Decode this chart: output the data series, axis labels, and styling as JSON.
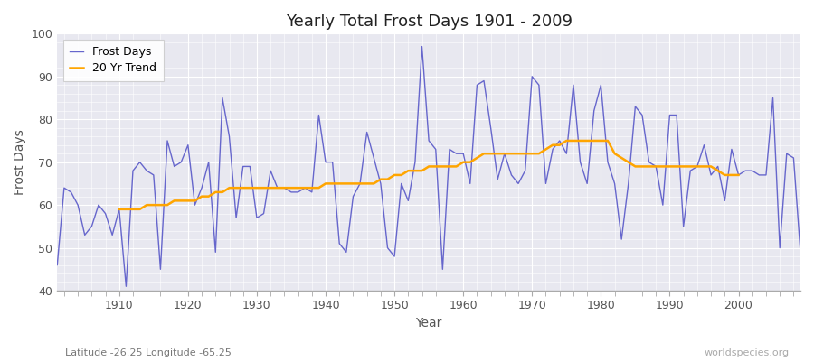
{
  "title": "Yearly Total Frost Days 1901 - 2009",
  "xlabel": "Year",
  "ylabel": "Frost Days",
  "footnote_left": "Latitude -26.25 Longitude -65.25",
  "footnote_right": "worldspecies.org",
  "legend_entries": [
    "Frost Days",
    "20 Yr Trend"
  ],
  "line_color": "#6666cc",
  "trend_color": "#FFA500",
  "fig_bg_color": "#ffffff",
  "plot_bg_color": "#e8e8f0",
  "ylim": [
    40,
    100
  ],
  "xlim": [
    1901,
    2009
  ],
  "years": [
    1901,
    1902,
    1903,
    1904,
    1905,
    1906,
    1907,
    1908,
    1909,
    1910,
    1911,
    1912,
    1913,
    1914,
    1915,
    1916,
    1917,
    1918,
    1919,
    1920,
    1921,
    1922,
    1923,
    1924,
    1925,
    1926,
    1927,
    1928,
    1929,
    1930,
    1931,
    1932,
    1933,
    1934,
    1935,
    1936,
    1937,
    1938,
    1939,
    1940,
    1941,
    1942,
    1943,
    1944,
    1945,
    1946,
    1947,
    1948,
    1949,
    1950,
    1951,
    1952,
    1953,
    1954,
    1955,
    1956,
    1957,
    1958,
    1959,
    1960,
    1961,
    1962,
    1963,
    1964,
    1965,
    1966,
    1967,
    1968,
    1969,
    1970,
    1971,
    1972,
    1973,
    1974,
    1975,
    1976,
    1977,
    1978,
    1979,
    1980,
    1981,
    1982,
    1983,
    1984,
    1985,
    1986,
    1987,
    1988,
    1989,
    1990,
    1991,
    1992,
    1993,
    1994,
    1995,
    1996,
    1997,
    1998,
    1999,
    2000,
    2001,
    2002,
    2003,
    2004,
    2005,
    2006,
    2007,
    2008,
    2009
  ],
  "frost_days": [
    46,
    64,
    63,
    60,
    53,
    55,
    60,
    58,
    53,
    59,
    41,
    68,
    70,
    68,
    67,
    45,
    75,
    69,
    70,
    74,
    60,
    64,
    70,
    49,
    85,
    76,
    57,
    69,
    69,
    57,
    58,
    68,
    64,
    64,
    63,
    63,
    64,
    63,
    81,
    70,
    70,
    51,
    49,
    62,
    65,
    77,
    71,
    65,
    50,
    48,
    65,
    61,
    70,
    97,
    75,
    73,
    45,
    73,
    72,
    72,
    65,
    88,
    89,
    78,
    66,
    72,
    67,
    65,
    68,
    90,
    88,
    65,
    73,
    75,
    72,
    88,
    70,
    65,
    82,
    88,
    70,
    65,
    52,
    65,
    83,
    81,
    70,
    69,
    60,
    81,
    81,
    55,
    68,
    69,
    74,
    67,
    69,
    61,
    73,
    67,
    68,
    68,
    67,
    67,
    85,
    50,
    72,
    71,
    49
  ],
  "trend_years": [
    1910,
    1911,
    1912,
    1913,
    1914,
    1915,
    1916,
    1917,
    1918,
    1919,
    1920,
    1921,
    1922,
    1923,
    1924,
    1925,
    1926,
    1927,
    1928,
    1929,
    1930,
    1931,
    1932,
    1933,
    1934,
    1935,
    1936,
    1937,
    1938,
    1939,
    1940,
    1941,
    1942,
    1943,
    1944,
    1945,
    1946,
    1947,
    1948,
    1949,
    1950,
    1951,
    1952,
    1953,
    1954,
    1955,
    1956,
    1957,
    1958,
    1959,
    1960,
    1961,
    1962,
    1963,
    1964,
    1965,
    1966,
    1967,
    1968,
    1969,
    1970,
    1971,
    1972,
    1973,
    1974,
    1975,
    1976,
    1977,
    1978,
    1979,
    1980,
    1981,
    1982,
    1983,
    1984,
    1985,
    1986,
    1987,
    1988,
    1989,
    1990,
    1991,
    1992,
    1993,
    1994,
    1995,
    1996,
    1997,
    1998,
    1999,
    2000
  ],
  "trend_values": [
    59,
    59,
    59,
    59,
    60,
    60,
    60,
    60,
    61,
    61,
    61,
    61,
    62,
    62,
    63,
    63,
    64,
    64,
    64,
    64,
    64,
    64,
    64,
    64,
    64,
    64,
    64,
    64,
    64,
    64,
    65,
    65,
    65,
    65,
    65,
    65,
    65,
    65,
    66,
    66,
    67,
    67,
    68,
    68,
    68,
    69,
    69,
    69,
    69,
    69,
    70,
    70,
    71,
    72,
    72,
    72,
    72,
    72,
    72,
    72,
    72,
    72,
    73,
    74,
    74,
    75,
    75,
    75,
    75,
    75,
    75,
    75,
    72,
    71,
    70,
    69,
    69,
    69,
    69,
    69,
    69,
    69,
    69,
    69,
    69,
    69,
    69,
    68,
    67,
    67,
    67
  ]
}
